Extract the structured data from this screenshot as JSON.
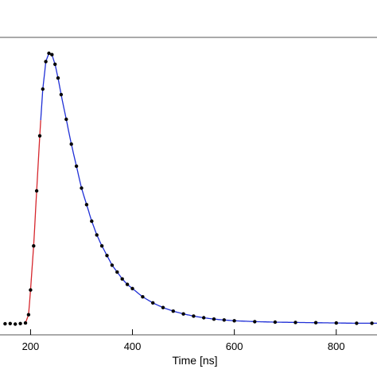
{
  "chart_data": {
    "type": "scatter",
    "xlabel": "Time [ns]",
    "ylabel": "",
    "xlim": [
      140,
      880
    ],
    "ylim": [
      0,
      100
    ],
    "x_ticks": [
      200,
      400,
      600,
      800
    ],
    "x_tick_labels": [
      "200",
      "400",
      "600",
      "800"
    ],
    "grid": false,
    "legend": "none",
    "colors": {
      "points": "#000000",
      "fit_decay": "#1f2fd6",
      "fit_rise": "#d6262c",
      "frame": "#555555"
    },
    "series": [
      {
        "values_xy": [
          [
            150,
            1.7
          ],
          [
            160,
            1.8
          ],
          [
            170,
            1.6
          ],
          [
            180,
            1.8
          ],
          [
            190,
            2.0
          ],
          [
            196,
            5
          ],
          [
            200,
            14
          ],
          [
            206,
            30
          ],
          [
            212,
            50
          ],
          [
            218,
            70
          ],
          [
            224,
            87
          ],
          [
            230,
            97
          ],
          [
            236,
            100
          ],
          [
            242,
            99.5
          ],
          [
            248,
            96
          ],
          [
            254,
            91
          ],
          [
            260,
            85
          ],
          [
            270,
            76
          ],
          [
            280,
            67
          ],
          [
            290,
            59
          ],
          [
            300,
            51
          ],
          [
            310,
            45
          ],
          [
            320,
            39
          ],
          [
            330,
            34
          ],
          [
            340,
            30
          ],
          [
            350,
            26.5
          ],
          [
            360,
            23
          ],
          [
            370,
            20.5
          ],
          [
            380,
            18
          ],
          [
            390,
            16
          ],
          [
            400,
            14.5
          ],
          [
            420,
            11.5
          ],
          [
            440,
            9.3
          ],
          [
            460,
            7.6
          ],
          [
            480,
            6.3
          ],
          [
            500,
            5.3
          ],
          [
            520,
            4.5
          ],
          [
            540,
            3.9
          ],
          [
            560,
            3.4
          ],
          [
            580,
            3.1
          ],
          [
            600,
            2.8
          ],
          [
            640,
            2.5
          ],
          [
            680,
            2.3
          ],
          [
            720,
            2.2
          ],
          [
            760,
            2.1
          ],
          [
            800,
            2.0
          ],
          [
            840,
            1.9
          ],
          [
            870,
            1.9
          ]
        ]
      }
    ],
    "fit_rise_range": [
      190,
      220
    ],
    "fit_decay_range": [
      220,
      880
    ]
  }
}
